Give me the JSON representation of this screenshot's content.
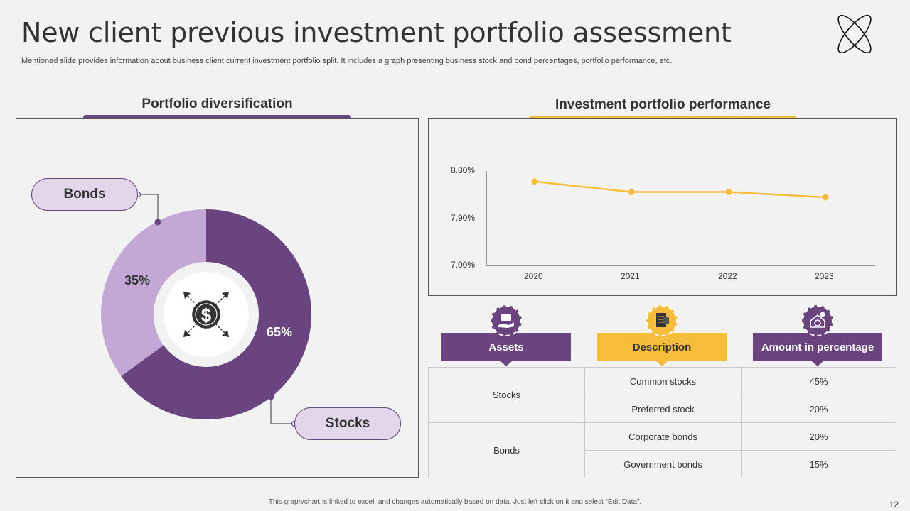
{
  "title": "New client previous investment portfolio assessment",
  "subtitle": "Mentioned slide provides information about business client current investment portfolio split. It includes a graph presenting business stock and bond percentages, portfolio performance, etc.",
  "colors": {
    "purple": "#69447f",
    "light_purple": "#c3a7d4",
    "yellow": "#f6bd3c",
    "callout_bg": "#e2d6ea"
  },
  "left_section": {
    "title": "Portfolio diversification"
  },
  "right_section": {
    "title": "Investment portfolio performance"
  },
  "callouts": {
    "bonds": "Bonds",
    "stocks": "Stocks"
  },
  "center_icon": "dollar-arrows-icon",
  "chart_data": [
    {
      "type": "pie",
      "title": "Portfolio diversification",
      "donut": true,
      "categories": [
        "Stocks",
        "Bonds"
      ],
      "values": [
        65,
        35
      ],
      "labels": [
        "65%",
        "35%"
      ]
    },
    {
      "type": "line",
      "title": "Investment portfolio performance",
      "categories": [
        "2020",
        "2021",
        "2022",
        "2023"
      ],
      "values": [
        8.6,
        8.4,
        8.4,
        8.3
      ],
      "ylim": [
        7.0,
        8.8
      ],
      "yticks": [
        "8.80%",
        "7.90%",
        "7.00%"
      ],
      "ytick_values": [
        8.8,
        7.9,
        7.0
      ]
    }
  ],
  "table": {
    "headers": [
      "Assets",
      "Description",
      "Amount in percentage"
    ],
    "header_icons": [
      "money-hand-icon",
      "document-icon",
      "house-dollar-icon"
    ],
    "groups": [
      {
        "asset": "Stocks",
        "rows": [
          {
            "desc": "Common stocks",
            "amount": "45%"
          },
          {
            "desc": "Preferred stock",
            "amount": "20%"
          }
        ]
      },
      {
        "asset": "Bonds",
        "rows": [
          {
            "desc": "Corporate bonds",
            "amount": "20%"
          },
          {
            "desc": "Government bonds",
            "amount": "15%"
          }
        ]
      }
    ]
  },
  "footer": "This graph/chart is linked to excel, and changes automatically based on data. Just left click on it and select “Edit Data”.",
  "page_number": "12"
}
